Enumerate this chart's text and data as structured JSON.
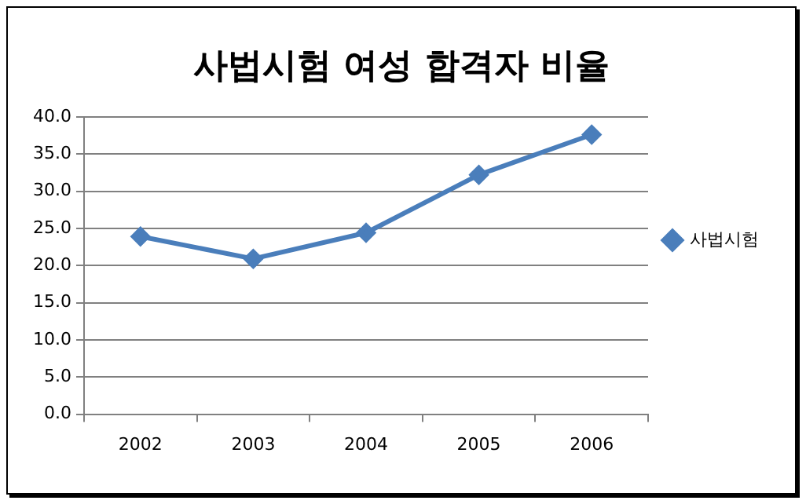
{
  "chart_data": {
    "type": "line",
    "title": "사법시험 여성 합격자 비율",
    "categories": [
      "2002",
      "2003",
      "2004",
      "2005",
      "2006"
    ],
    "series": [
      {
        "name": "사법시험",
        "color": "#4a7ebb",
        "values": [
          23.9,
          20.9,
          24.4,
          32.2,
          37.6
        ]
      }
    ],
    "ylim": [
      0,
      40
    ],
    "yticks": [
      {
        "value": 0,
        "label": "0.0"
      },
      {
        "value": 5,
        "label": "5.0"
      },
      {
        "value": 10,
        "label": "10.0"
      },
      {
        "value": 15,
        "label": "15.0"
      },
      {
        "value": 20,
        "label": "20.0"
      },
      {
        "value": 25,
        "label": "25.0"
      },
      {
        "value": 30,
        "label": "30.0"
      },
      {
        "value": 35,
        "label": "35.0"
      },
      {
        "value": 40,
        "label": "40.0"
      }
    ],
    "grid": "y",
    "legend": "right",
    "marker": "diamond",
    "line_style": "solid"
  }
}
